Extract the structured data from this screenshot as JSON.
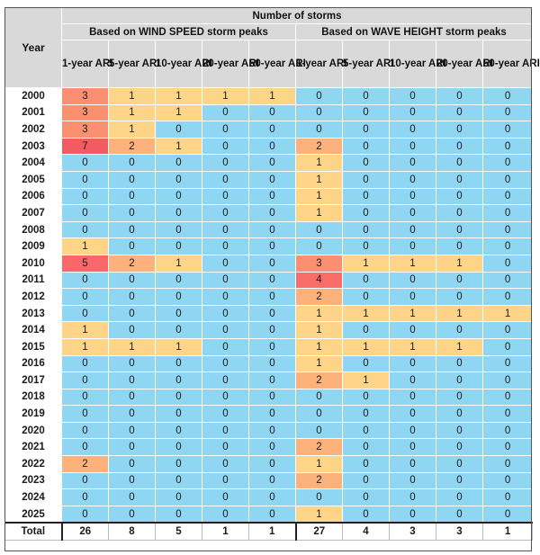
{
  "header": {
    "year_label": "Year",
    "title": "Number of storms",
    "groups": [
      "Based on WIND SPEED storm peaks",
      "Based on WAVE HEIGHT storm peaks"
    ],
    "columns": [
      "1-year ARI",
      "5-year ARI",
      "10-year ARI",
      "20-year ARI",
      "50-year ARI"
    ]
  },
  "rows": [
    {
      "year": "2000",
      "wind": [
        3,
        1,
        1,
        1,
        1
      ],
      "wave": [
        0,
        0,
        0,
        0,
        0
      ]
    },
    {
      "year": "2001",
      "wind": [
        3,
        1,
        1,
        0,
        0
      ],
      "wave": [
        0,
        0,
        0,
        0,
        0
      ]
    },
    {
      "year": "2002",
      "wind": [
        3,
        1,
        0,
        0,
        0
      ],
      "wave": [
        0,
        0,
        0,
        0,
        0
      ]
    },
    {
      "year": "2003",
      "wind": [
        7,
        2,
        1,
        0,
        0
      ],
      "wave": [
        2,
        0,
        0,
        0,
        0
      ]
    },
    {
      "year": "2004",
      "wind": [
        0,
        0,
        0,
        0,
        0
      ],
      "wave": [
        1,
        0,
        0,
        0,
        0
      ]
    },
    {
      "year": "2005",
      "wind": [
        0,
        0,
        0,
        0,
        0
      ],
      "wave": [
        1,
        0,
        0,
        0,
        0
      ]
    },
    {
      "year": "2006",
      "wind": [
        0,
        0,
        0,
        0,
        0
      ],
      "wave": [
        1,
        0,
        0,
        0,
        0
      ]
    },
    {
      "year": "2007",
      "wind": [
        0,
        0,
        0,
        0,
        0
      ],
      "wave": [
        1,
        0,
        0,
        0,
        0
      ]
    },
    {
      "year": "2008",
      "wind": [
        0,
        0,
        0,
        0,
        0
      ],
      "wave": [
        0,
        0,
        0,
        0,
        0
      ]
    },
    {
      "year": "2009",
      "wind": [
        1,
        0,
        0,
        0,
        0
      ],
      "wave": [
        0,
        0,
        0,
        0,
        0
      ]
    },
    {
      "year": "2010",
      "wind": [
        5,
        2,
        1,
        0,
        0
      ],
      "wave": [
        3,
        1,
        1,
        1,
        0
      ]
    },
    {
      "year": "2011",
      "wind": [
        0,
        0,
        0,
        0,
        0
      ],
      "wave": [
        4,
        0,
        0,
        0,
        0
      ]
    },
    {
      "year": "2012",
      "wind": [
        0,
        0,
        0,
        0,
        0
      ],
      "wave": [
        2,
        0,
        0,
        0,
        0
      ]
    },
    {
      "year": "2013",
      "wind": [
        0,
        0,
        0,
        0,
        0
      ],
      "wave": [
        1,
        1,
        1,
        1,
        1
      ]
    },
    {
      "year": "2014",
      "wind": [
        1,
        0,
        0,
        0,
        0
      ],
      "wave": [
        1,
        0,
        0,
        0,
        0
      ]
    },
    {
      "year": "2015",
      "wind": [
        1,
        1,
        1,
        0,
        0
      ],
      "wave": [
        1,
        1,
        1,
        1,
        0
      ]
    },
    {
      "year": "2016",
      "wind": [
        0,
        0,
        0,
        0,
        0
      ],
      "wave": [
        1,
        0,
        0,
        0,
        0
      ]
    },
    {
      "year": "2017",
      "wind": [
        0,
        0,
        0,
        0,
        0
      ],
      "wave": [
        2,
        1,
        0,
        0,
        0
      ]
    },
    {
      "year": "2018",
      "wind": [
        0,
        0,
        0,
        0,
        0
      ],
      "wave": [
        0,
        0,
        0,
        0,
        0
      ]
    },
    {
      "year": "2019",
      "wind": [
        0,
        0,
        0,
        0,
        0
      ],
      "wave": [
        0,
        0,
        0,
        0,
        0
      ]
    },
    {
      "year": "2020",
      "wind": [
        0,
        0,
        0,
        0,
        0
      ],
      "wave": [
        0,
        0,
        0,
        0,
        0
      ]
    },
    {
      "year": "2021",
      "wind": [
        0,
        0,
        0,
        0,
        0
      ],
      "wave": [
        2,
        0,
        0,
        0,
        0
      ]
    },
    {
      "year": "2022",
      "wind": [
        2,
        0,
        0,
        0,
        0
      ],
      "wave": [
        1,
        0,
        0,
        0,
        0
      ]
    },
    {
      "year": "2023",
      "wind": [
        0,
        0,
        0,
        0,
        0
      ],
      "wave": [
        2,
        0,
        0,
        0,
        0
      ]
    },
    {
      "year": "2024",
      "wind": [
        0,
        0,
        0,
        0,
        0
      ],
      "wave": [
        0,
        0,
        0,
        0,
        0
      ]
    },
    {
      "year": "2025",
      "wind": [
        0,
        0,
        0,
        0,
        0
      ],
      "wave": [
        1,
        0,
        0,
        0,
        0
      ]
    }
  ],
  "total": {
    "label": "Total",
    "wind": [
      26,
      8,
      5,
      1,
      1
    ],
    "wave": [
      27,
      4,
      3,
      3,
      1
    ]
  },
  "colors": {
    "0": "#8fd6f3",
    "1": "#fdd488",
    "2": "#fcb27a",
    "3": "#fb9070",
    "4": "#f86d68",
    "5": "#f8676a",
    "7": "#f35b62",
    "header_bg": "#d9d9d9"
  }
}
